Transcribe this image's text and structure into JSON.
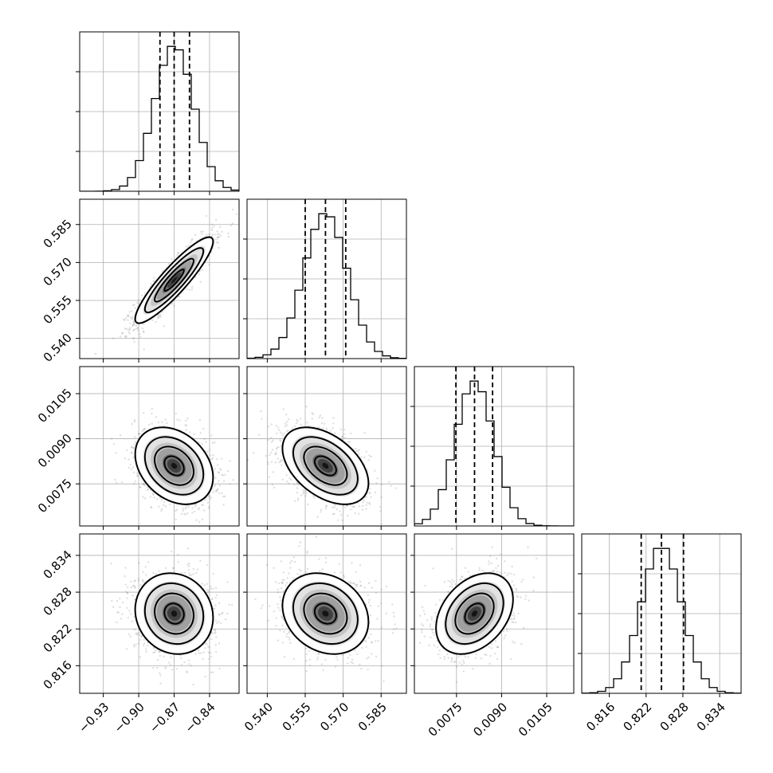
{
  "chart_data": {
    "type": "corner",
    "parameters": [
      {
        "mean": -0.87,
        "std": 0.0165,
        "range": [
          -0.95,
          -0.815
        ],
        "quantiles": [
          -0.882,
          -0.87,
          -0.857
        ],
        "ticks": [
          -0.93,
          -0.9,
          -0.87,
          -0.84
        ],
        "tick_labels": [
          "−0.93",
          "−0.90",
          "−0.87",
          "−0.84"
        ]
      },
      {
        "mean": 0.563,
        "std": 0.0085,
        "range": [
          0.532,
          0.595
        ],
        "quantiles": [
          0.555,
          0.563,
          0.571
        ],
        "ticks": [
          0.54,
          0.555,
          0.57,
          0.585
        ],
        "tick_labels": [
          "0.540",
          "0.555",
          "0.570",
          "0.585"
        ]
      },
      {
        "mean": 0.0081,
        "std": 0.00064,
        "range": [
          0.0061,
          0.0114
        ],
        "quantiles": [
          0.00748,
          0.0081,
          0.0087
        ],
        "ticks": [
          0.0075,
          0.009,
          0.0105
        ],
        "tick_labels": [
          "0.0075",
          "0.0090",
          "0.0105"
        ]
      },
      {
        "mean": 0.8245,
        "std": 0.0033,
        "range": [
          0.8115,
          0.8375
        ],
        "quantiles": [
          0.8212,
          0.8245,
          0.8281
        ],
        "ticks": [
          0.816,
          0.822,
          0.828,
          0.834
        ],
        "tick_labels": [
          "0.816",
          "0.822",
          "0.828",
          "0.834"
        ]
      }
    ],
    "correlations": [
      [
        1,
        0.9,
        -0.3,
        -0.1
      ],
      [
        0.9,
        1,
        -0.45,
        -0.2
      ],
      [
        -0.3,
        -0.45,
        1,
        0.35
      ],
      [
        -0.1,
        -0.2,
        0.35,
        1
      ]
    ],
    "histogram_bins": 20,
    "quantile_levels": [
      0.16,
      0.5,
      0.84
    ],
    "contour_levels_sigma": [
      0.5,
      1.0,
      1.5,
      2.0
    ],
    "grid": true,
    "colors": {
      "lines": "#000000",
      "grid": "#b0b0b0",
      "scatter": "#8c8c8c",
      "background": "#ffffff"
    }
  }
}
